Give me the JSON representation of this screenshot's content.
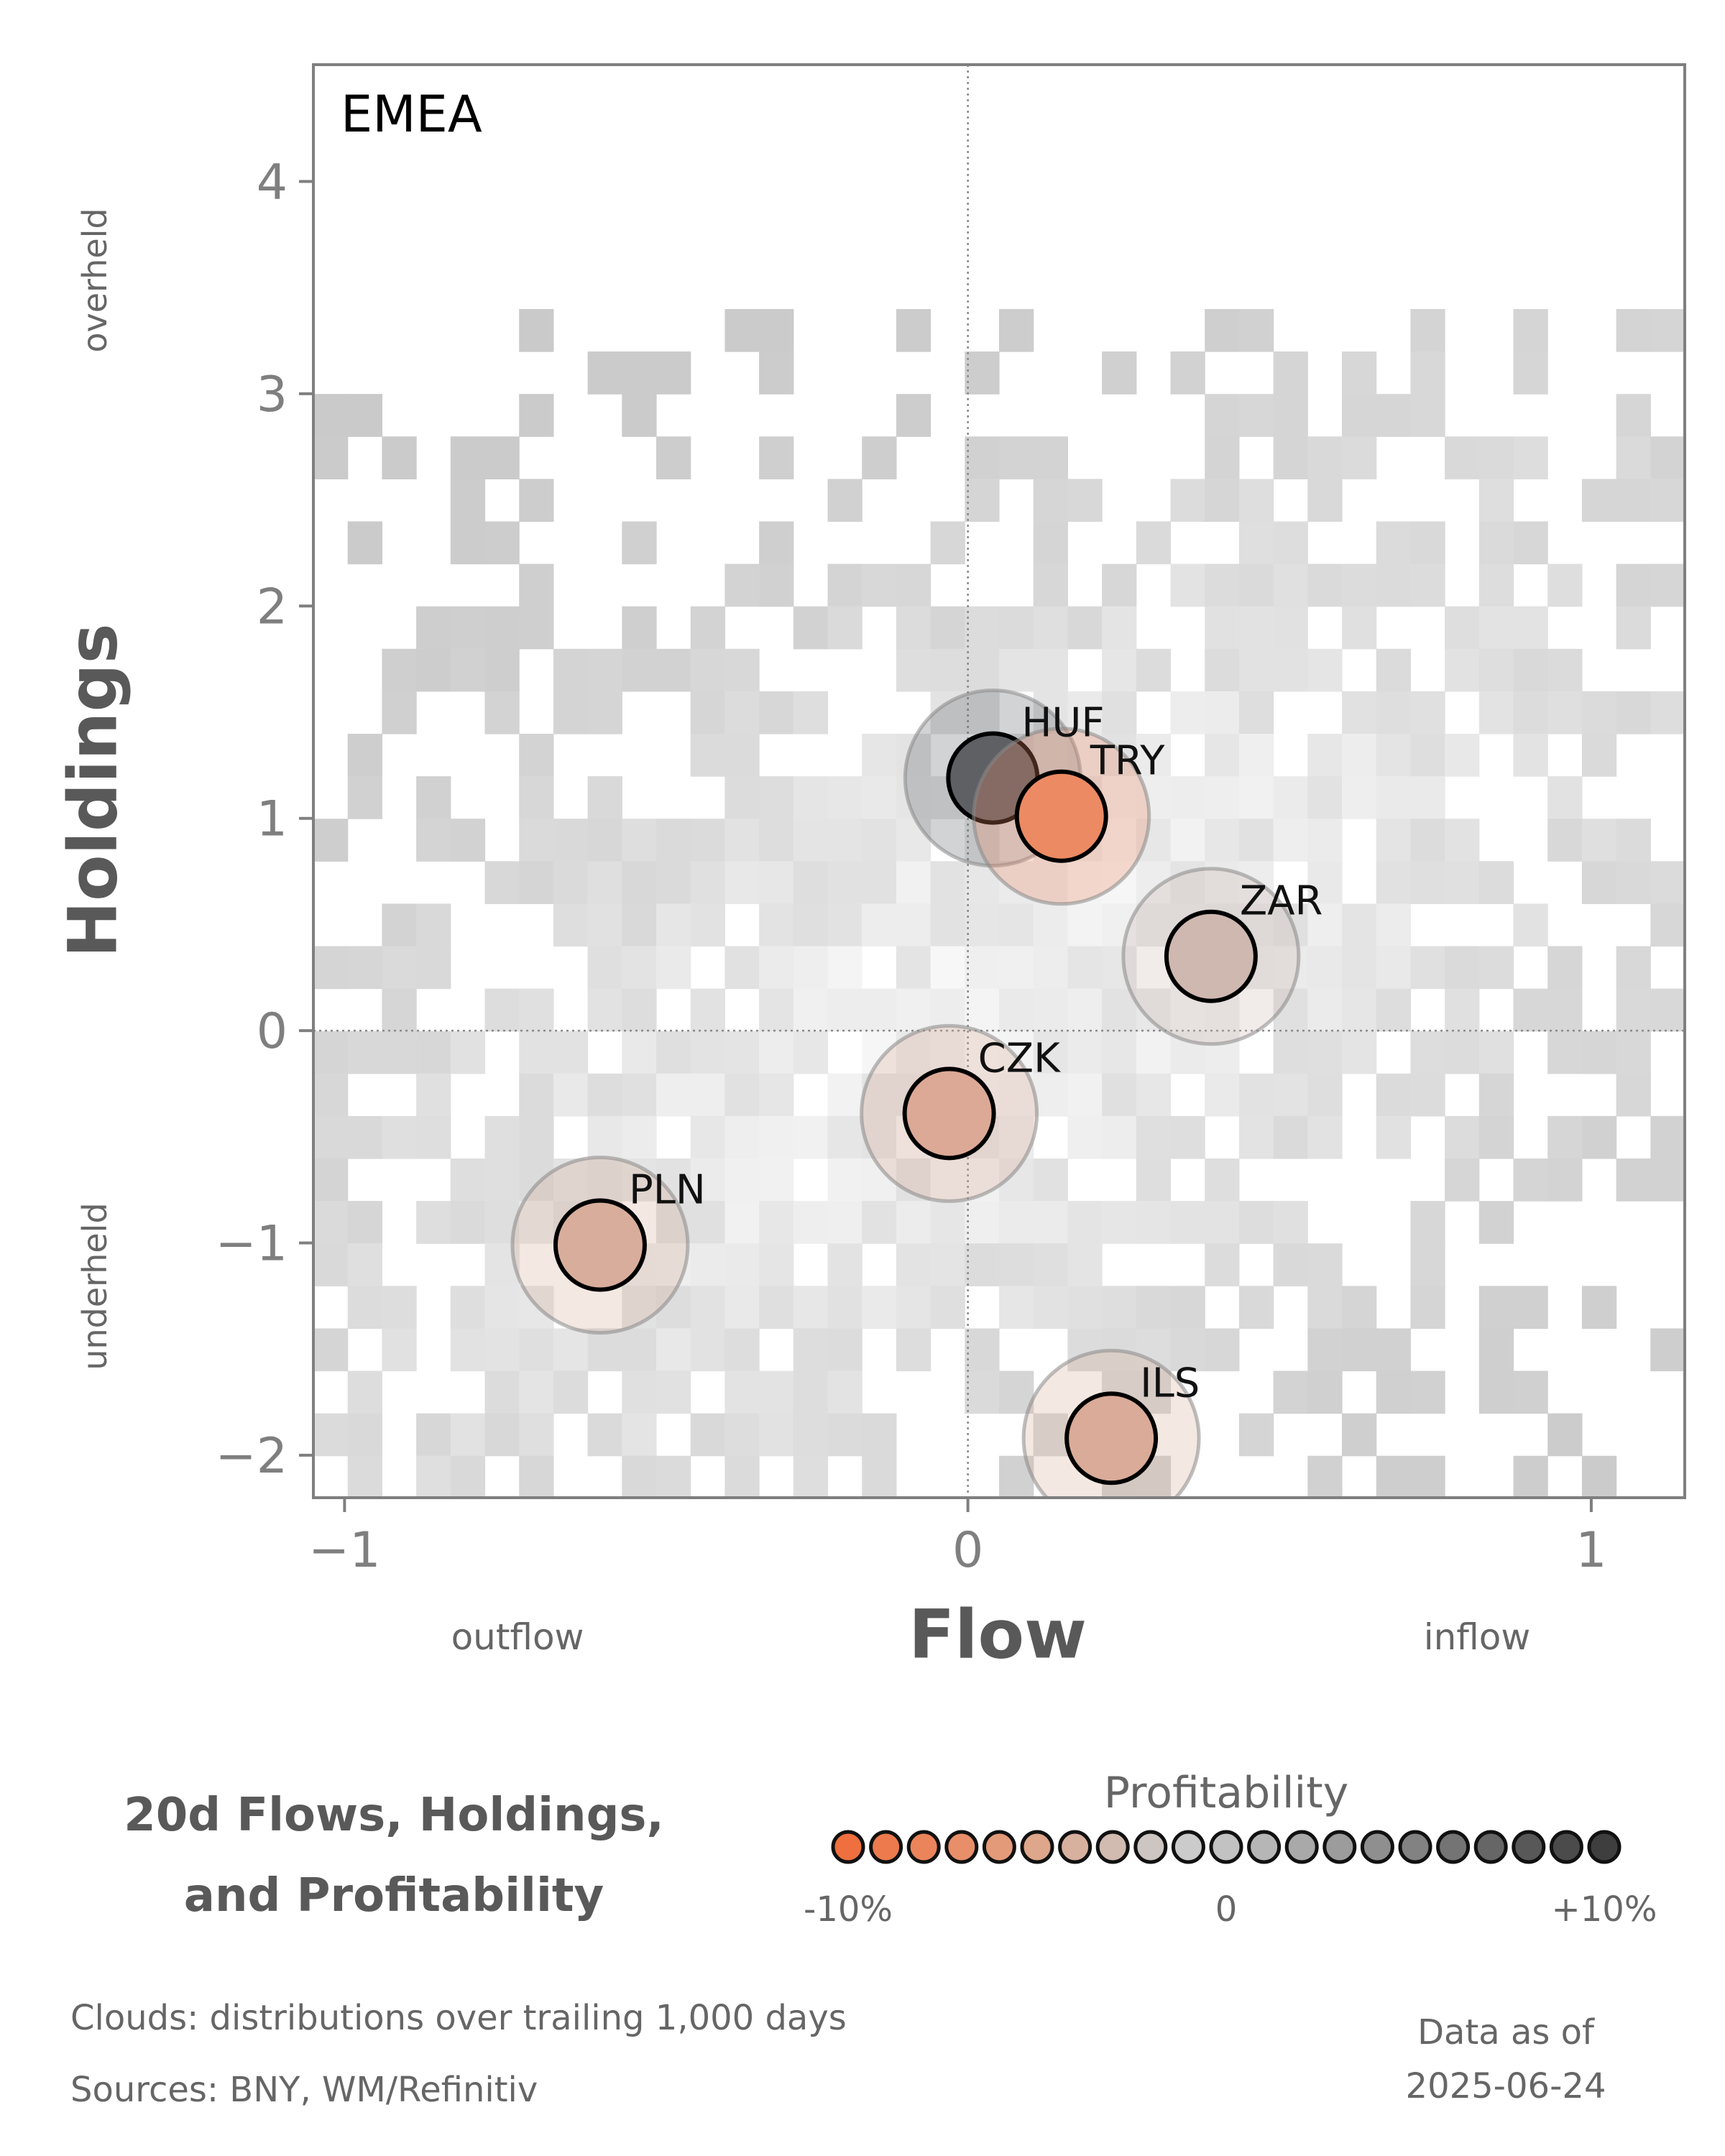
{
  "chart_data": {
    "type": "scatter",
    "panel_label": "EMEA",
    "xlabel": "Flow",
    "ylabel": "Holdings",
    "xlim": [
      -1.05,
      1.15
    ],
    "ylim": [
      -2.2,
      4.55
    ],
    "xticks": [
      "−1",
      "0",
      "1"
    ],
    "xtick_values": [
      -1,
      0,
      1
    ],
    "yticks": [
      "−2",
      "−1",
      "0",
      "1",
      "2",
      "3",
      "4"
    ],
    "ytick_values": [
      -2,
      -1,
      0,
      1,
      2,
      3,
      4
    ],
    "x_low_hint": "outflow",
    "x_high_hint": "inflow",
    "y_low_hint": "underheld",
    "y_high_hint": "overheld",
    "reference_lines": {
      "x": 0,
      "y": 0,
      "style": "dotted"
    },
    "grid": false,
    "points": [
      {
        "label": "HUF",
        "x": 0.04,
        "y": 1.19,
        "profitability": 10,
        "color": "#5e6064"
      },
      {
        "label": "TRY",
        "x": 0.15,
        "y": 1.01,
        "profitability": -8,
        "color": "#ec8a63"
      },
      {
        "label": "ZAR",
        "x": 0.39,
        "y": 0.35,
        "profitability": -1,
        "color": "#ceb8b0"
      },
      {
        "label": "CZK",
        "x": -0.03,
        "y": -0.39,
        "profitability": -4,
        "color": "#dca996"
      },
      {
        "label": "PLN",
        "x": -0.59,
        "y": -1.01,
        "profitability": -4,
        "color": "#d8ad9c"
      },
      {
        "label": "ILS",
        "x": 0.23,
        "y": -1.92,
        "profitability": -4,
        "color": "#d9ab98"
      }
    ],
    "cloud": {
      "description_hidden": true,
      "x_range": [
        -1.05,
        1.15
      ],
      "y_range": [
        -2.2,
        3.4
      ],
      "base_color": "#c8c8c8"
    },
    "colorbar": {
      "title": "Profitability",
      "min_label": "-10%",
      "mid_label": "0",
      "max_label": "+10%",
      "colors": [
        "#ef6f3e",
        "#ed7a4d",
        "#eb845b",
        "#e88f69",
        "#e39a79",
        "#dea68a",
        "#d8b09e",
        "#d1bab0",
        "#cdc5c1",
        "#cbcbcb",
        "#c2c2c2",
        "#b6b6b6",
        "#a9a9a9",
        "#9c9c9c",
        "#8f8f8f",
        "#828282",
        "#747474",
        "#666666",
        "#585858",
        "#4b4b4b",
        "#3e3e3e"
      ]
    }
  },
  "title_lines": [
    "20d Flows, Holdings,",
    "and Profitability"
  ],
  "footer": {
    "clouds_note": "Clouds:  distributions over trailing 1,000 days",
    "sources_note": "Sources:  BNY, WM/Refinitiv",
    "date_label": "Data as of",
    "date_value": "2025-06-24"
  }
}
